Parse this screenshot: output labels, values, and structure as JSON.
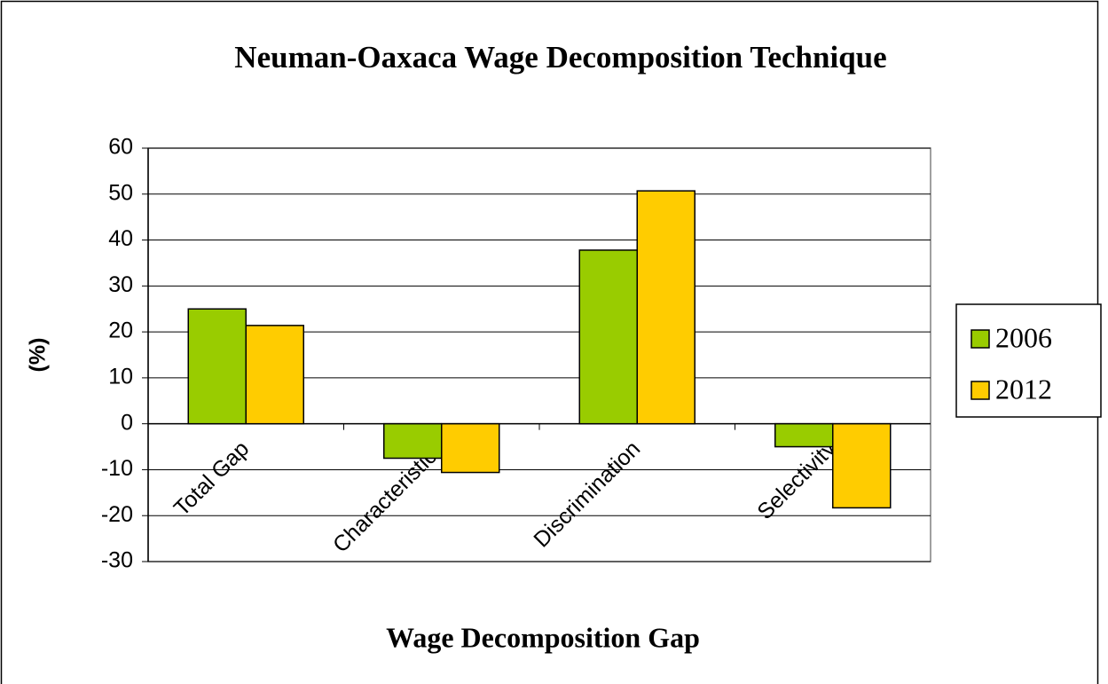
{
  "chart_data": {
    "type": "bar",
    "title": "Neuman-Oaxaca Wage Decomposition Technique",
    "x_label": "Wage Decomposition Gap",
    "y_label": "(%)",
    "categories": [
      "Total Gap",
      "Characteristics",
      "Discrimination",
      "Selectivity"
    ],
    "series": [
      {
        "name": "2006",
        "color": "#99cc00",
        "values": [
          25,
          -7.5,
          37.8,
          -5
        ]
      },
      {
        "name": "2012",
        "color": "#ffcc00",
        "values": [
          21.4,
          -10.6,
          50.7,
          -18.3
        ]
      }
    ],
    "ylim": [
      -30,
      60
    ],
    "yticks": [
      -30,
      -20,
      -10,
      0,
      10,
      20,
      30,
      40,
      50,
      60
    ],
    "grid": true,
    "legend": "right"
  }
}
